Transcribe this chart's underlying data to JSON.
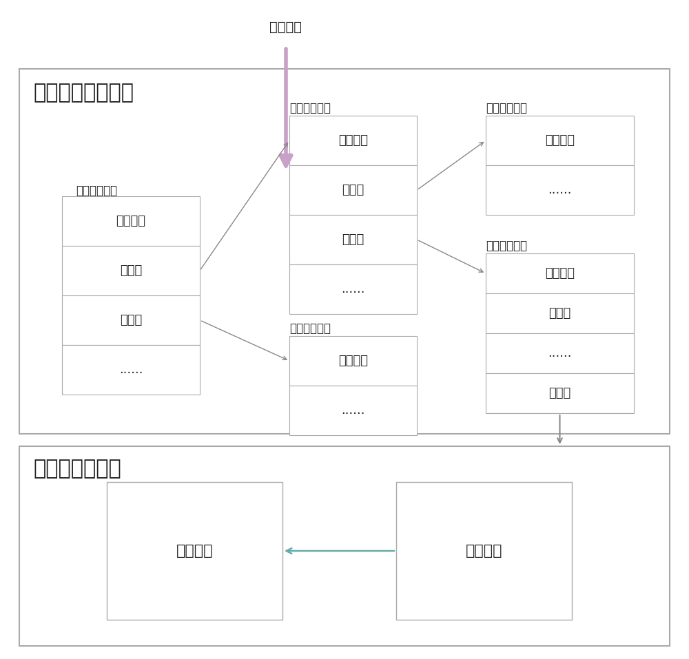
{
  "bg_color": "#ffffff",
  "module1_label": "垂直层级索引模块",
  "module2_label": "时间轴索引模块",
  "raw_data_label": "原始数据",
  "level1_label": "第一层级索引",
  "level2a_label": "第二层级索引",
  "level2b_label": "第二层级索引",
  "level3a_label": "第三层级索引",
  "level3b_label": "第三层级索引",
  "hash_func": "哈希函数",
  "dataset": "数据集",
  "dots": "......",
  "time_list": "时间列表",
  "event_list": "事件列表",
  "arrow_color_purple": "#c8a0c8",
  "arrow_color_thin": "#888888",
  "arrow_color_teal": "#66aaaa",
  "module_bg": "#ffffff",
  "cell_bg": "#ffffff",
  "module_border": "#aaaaaa",
  "cell_border": "#aaaaaa"
}
